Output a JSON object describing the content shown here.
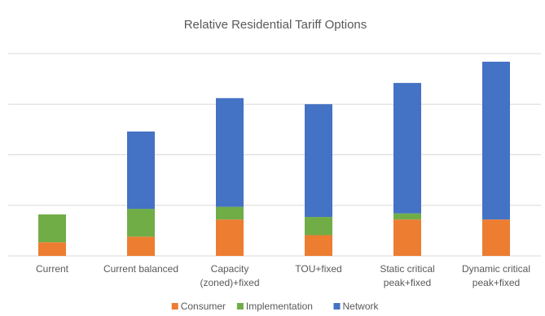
{
  "chart_data": {
    "type": "bar",
    "stacked": true,
    "title": "Relative Residential Tariff Options",
    "categories": [
      [
        "Current"
      ],
      [
        "Current balanced"
      ],
      [
        "Capacity",
        "(zoned)+fixed"
      ],
      [
        "TOU+fixed"
      ],
      [
        "Static critical",
        "peak+fixed"
      ],
      [
        "Dynamic critical",
        "peak+fixed"
      ]
    ],
    "series": [
      {
        "name": "Consumer",
        "color": "#ED7D31",
        "values": [
          0.27,
          0.38,
          0.72,
          0.41,
          0.72,
          0.72
        ]
      },
      {
        "name": "Implementation",
        "color": "#70AD47",
        "values": [
          0.55,
          0.55,
          0.25,
          0.36,
          0.12,
          0.0
        ]
      },
      {
        "name": "Network",
        "color": "#4472C4",
        "values": [
          0.0,
          1.53,
          2.15,
          2.23,
          2.58,
          3.12
        ]
      }
    ],
    "ylim": [
      0,
      4
    ],
    "y_gridlines": [
      0,
      1,
      2,
      3,
      4
    ],
    "y_tick_labels_shown": false,
    "grid": true,
    "legend": "bottom"
  }
}
